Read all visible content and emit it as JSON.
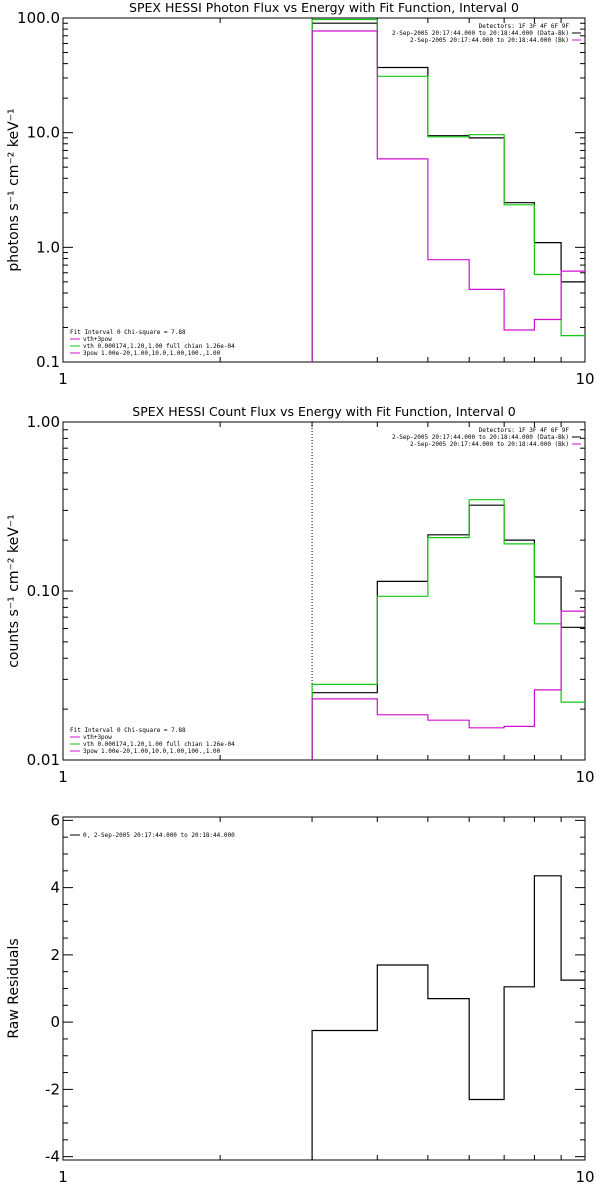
{
  "colors": {
    "black": "#000000",
    "magenta": "#d010d0",
    "green": "#10c810"
  },
  "chart_data": [
    {
      "type": "line",
      "title": "SPEX HESSI Photon Flux vs Energy with Fit Function, Interval 0",
      "ylabel": "photons s⁻¹ cm⁻² keV⁻¹",
      "xscale": "log",
      "yscale": "log",
      "xlim": [
        1,
        10
      ],
      "ylim": [
        0.1,
        100
      ],
      "xticklabels": [
        "1",
        "10"
      ],
      "yticklabels": [
        "0.1",
        "1.0",
        "10.0",
        "100.0"
      ],
      "yticks": [
        0.1,
        1,
        10,
        100
      ],
      "dotted_x": 3,
      "bin_edges": [
        3,
        4,
        5,
        6,
        7,
        8,
        9,
        10
      ],
      "series": [
        {
          "color": "black",
          "values": [
            90,
            37,
            9.4,
            9.0,
            2.45,
            1.1,
            0.5
          ]
        },
        {
          "color": "green",
          "values": [
            97,
            31,
            9.2,
            9.6,
            2.35,
            0.58,
            0.17
          ]
        },
        {
          "color": "magenta",
          "values": [
            77,
            5.9,
            0.78,
            0.43,
            0.19,
            0.235,
            0.62
          ]
        }
      ],
      "legend_right": [
        "Detectors: 1F 3F 4F 6F 9F",
        "2-Sep-2005 20:17:44.000 to 20:18:44.000 (Data-Bk)",
        "2-Sep-2005 20:17:44.000 to 20:18:44.000 (Bk)"
      ],
      "legend_left": [
        "Fit Interval 0   Chi-square = 7.88",
        "vth+3pow",
        "vth 0.000174,1.20,1.00  full chian 1.26e-04",
        "3pow 1.00e-20,1.00,10.0,1.00,100.,1.00"
      ]
    },
    {
      "type": "line",
      "title": "SPEX HESSI Count Flux vs Energy with Fit Function, Interval 0",
      "ylabel": "counts s⁻¹ cm⁻² keV⁻¹",
      "xscale": "log",
      "yscale": "log",
      "xlim": [
        1,
        10
      ],
      "ylim": [
        0.01,
        1
      ],
      "xticklabels": [
        "1",
        "10"
      ],
      "yticklabels": [
        "0.01",
        "0.10",
        "1.00"
      ],
      "yticks": [
        0.01,
        0.1,
        1
      ],
      "dotted_x": 3,
      "bin_edges": [
        3,
        4,
        5,
        6,
        7,
        8,
        9,
        10
      ],
      "series": [
        {
          "color": "black",
          "values": [
            0.025,
            0.114,
            0.215,
            0.322,
            0.2,
            0.121,
            0.061
          ]
        },
        {
          "color": "green",
          "values": [
            0.028,
            0.093,
            0.207,
            0.347,
            0.19,
            0.064,
            0.022
          ]
        },
        {
          "color": "magenta",
          "values": [
            0.023,
            0.0185,
            0.0172,
            0.0155,
            0.0158,
            0.026,
            0.076
          ]
        }
      ],
      "legend_right": [
        "Detectors: 1F 3F 4F 6F 9F",
        "2-Sep-2005 20:17:44.000 to 20:18:44.000 (Data-Bk)",
        "2-Sep-2005 20:17:44.000 to 20:18:44.000 (Bk)"
      ],
      "legend_left": [
        "Fit Interval 0   Chi-square = 7.88",
        "vth+3pow",
        "vth 0.000174,1.20,1.00  full chian 1.26e-04",
        "3pow 1.00e-20,1.00,10.0,1.00,100.,1.00"
      ]
    },
    {
      "type": "line",
      "title": "",
      "ylabel": "Raw Residuals",
      "xscale": "log",
      "yscale": "linear",
      "xlim": [
        1,
        10
      ],
      "ylim": [
        -4.1,
        6.1
      ],
      "xticklabels": [
        "1",
        "10"
      ],
      "yticklabels": [
        "-4",
        "-2",
        "0",
        "2",
        "4",
        "6"
      ],
      "yticks": [
        -4,
        -2,
        0,
        2,
        4,
        6
      ],
      "bin_edges": [
        3,
        4,
        5,
        6,
        7,
        8,
        9,
        10
      ],
      "series": [
        {
          "color": "black",
          "values": [
            -0.25,
            1.7,
            0.7,
            -2.3,
            1.05,
            4.35,
            1.25
          ]
        }
      ],
      "legend_left": [
        "0,  2-Sep-2005 20:17:44.000 to 20:18:44.000"
      ]
    }
  ]
}
